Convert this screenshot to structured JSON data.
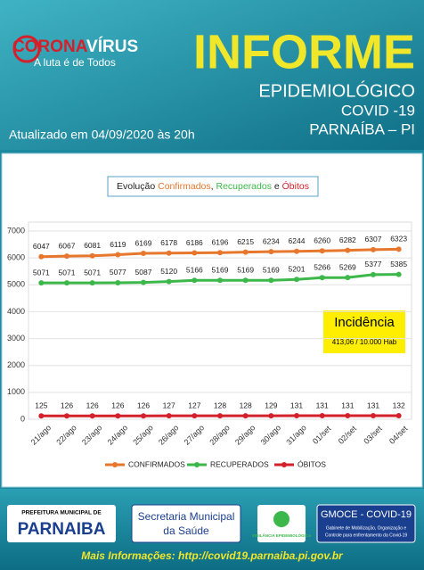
{
  "header": {
    "brand": [
      "CORONA",
      "VÍRUS"
    ],
    "slogan": "A luta é de Todos",
    "title": "INFORME",
    "subtitle": "EPIDEMIOLÓGICO",
    "covid": "COVID -19",
    "city": "PARNAÍBA – PI",
    "updated": "Atualizado em 04/09/2020 às 20h"
  },
  "chart_data": {
    "type": "line",
    "title_parts": [
      "Evolução ",
      "Confirmados",
      ", ",
      "Recuperados",
      " e ",
      "Óbitos"
    ],
    "categories": [
      "21/ago",
      "22/ago",
      "23/ago",
      "24/ago",
      "25/ago",
      "26/ago",
      "27/ago",
      "28/ago",
      "29/ago",
      "30/ago",
      "31/ago",
      "01/set",
      "02/set",
      "03/set",
      "04/set"
    ],
    "series": [
      {
        "name": "CONFIRMADOS",
        "color": "#e8772e",
        "values": [
          6047,
          6067,
          6081,
          6119,
          6169,
          6178,
          6186,
          6196,
          6215,
          6234,
          6244,
          6260,
          6282,
          6307,
          6323
        ]
      },
      {
        "name": "RECUPERADOS",
        "color": "#3cb84a",
        "values": [
          5071,
          5071,
          5071,
          5077,
          5087,
          5120,
          5166,
          5169,
          5169,
          5169,
          5201,
          5266,
          5269,
          5377,
          5385
        ]
      },
      {
        "name": "ÓBITOS",
        "color": "#d4202a",
        "values": [
          125,
          126,
          126,
          126,
          126,
          127,
          127,
          128,
          128,
          129,
          131,
          131,
          131,
          131,
          132
        ]
      }
    ],
    "ylim": [
      0,
      7000
    ],
    "yticks": [
      0,
      1000,
      2000,
      3000,
      4000,
      5000,
      6000,
      7000
    ],
    "grid": true,
    "legend": "bottom",
    "annotation": {
      "title": "Incidência",
      "text": "413,06 / 10.000 Hab"
    }
  },
  "footer": {
    "prefeitura": "PREFEITURA MUNICIPAL DE",
    "parnaiba": "PARNAIBA",
    "secretaria": [
      "Secretaria Municipal",
      "da Saúde"
    ],
    "vigilancia": "VIGILÂNCIA EPIDEMIOLÓGICA",
    "gmoce": "GMOCE - COVID-19",
    "gabinete": [
      "Gabinete de Mobilização, Organização e",
      "Controle para enfrentamento da Covid-19"
    ],
    "info_label": "Mais Informações:",
    "url": "http://covid19.parnaiba.pi.gov.br"
  }
}
